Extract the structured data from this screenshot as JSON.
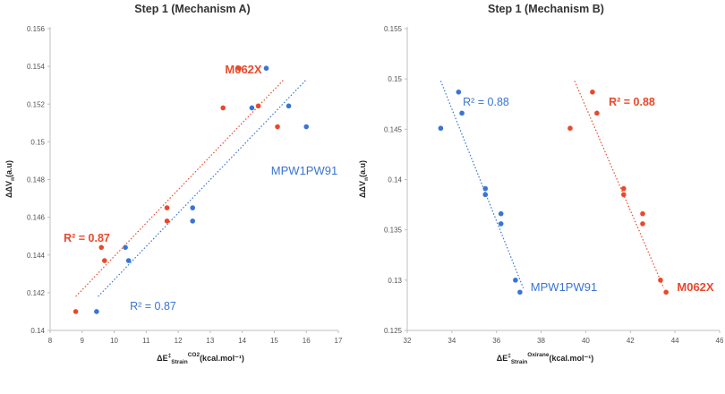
{
  "colors": {
    "red": "#e8492c",
    "blue": "#3a74d4",
    "axis": "#bfbfbf"
  },
  "chart_data": [
    {
      "type": "scatter",
      "title": "Step 1 (Mechanism A)",
      "xlabel": {
        "main": "ΔE",
        "sup": "‡",
        "sub": "Strain",
        "sup2": "CO2",
        "unit": "(kcal.mol⁻¹)"
      },
      "ylabel": {
        "main": "ΔΔV",
        "sub": "n",
        "unit": "(a.u)"
      },
      "xlim": [
        8,
        17
      ],
      "ylim": [
        0.14,
        0.156
      ],
      "xticks": [
        8,
        9,
        10,
        11,
        12,
        13,
        14,
        15,
        16,
        17
      ],
      "xtick_labels": [
        "8",
        "9",
        "10",
        "11",
        "12",
        "13",
        "14",
        "15",
        "16",
        "17"
      ],
      "yticks": [
        0.14,
        0.142,
        0.144,
        0.146,
        0.148,
        0.15,
        0.152,
        0.154,
        0.156
      ],
      "ytick_labels": [
        "0.14",
        "0.142",
        "0.144",
        "0.146",
        "0.148",
        "0.15",
        "0.152",
        "0.154",
        "0.156"
      ],
      "series": [
        {
          "name": "M062X",
          "color": "#e8492c",
          "x": [
            8.8,
            9.6,
            9.7,
            11.65,
            11.65,
            13.4,
            13.9,
            14.5,
            15.1
          ],
          "y": [
            0.141,
            0.1444,
            0.1437,
            0.1465,
            0.1458,
            0.1518,
            0.1539,
            0.1519,
            0.1508
          ],
          "trend": {
            "x": [
              8.8,
              15.3
            ],
            "y": [
              0.1418,
              0.1533
            ]
          },
          "label": "M062X",
          "r2": "R² = 0.87"
        },
        {
          "name": "MPW1PW91",
          "color": "#3a74d4",
          "x": [
            9.45,
            10.35,
            10.45,
            12.45,
            12.45,
            14.3,
            14.75,
            15.45,
            16.0
          ],
          "y": [
            0.141,
            0.1444,
            0.1437,
            0.1465,
            0.1458,
            0.1518,
            0.1539,
            0.1519,
            0.1508
          ],
          "trend": {
            "x": [
              9.5,
              16.0
            ],
            "y": [
              0.1418,
              0.1533
            ]
          },
          "label": "MPW1PW91",
          "r2": "R² = 0.87"
        }
      ]
    },
    {
      "type": "scatter",
      "title": "Step 1 (Mechanism B)",
      "xlabel": {
        "main": "ΔE",
        "sup": "‡",
        "sub": "Strain",
        "sup2": "Oxirane",
        "unit": "(kcal.mol⁻¹)"
      },
      "ylabel": {
        "main": "ΔΔV",
        "sub": "n",
        "unit": "(a.u)"
      },
      "xlim": [
        32,
        46
      ],
      "ylim": [
        0.125,
        0.155
      ],
      "xticks": [
        32,
        34,
        36,
        38,
        40,
        42,
        44,
        46
      ],
      "xtick_labels": [
        "32",
        "34",
        "36",
        "38",
        "40",
        "42",
        "44",
        "46"
      ],
      "yticks": [
        0.125,
        0.13,
        0.135,
        0.14,
        0.145,
        0.15,
        0.155
      ],
      "ytick_labels": [
        "0.125",
        "0.13",
        "0.135",
        "0.14",
        "0.145",
        "0.15",
        "0.155"
      ],
      "series": [
        {
          "name": "MPW1PW91",
          "color": "#3a74d4",
          "x": [
            33.5,
            34.3,
            34.45,
            35.5,
            35.5,
            36.2,
            36.2,
            36.85,
            37.05
          ],
          "y": [
            0.1451,
            0.1487,
            0.1466,
            0.1391,
            0.1385,
            0.1366,
            0.1356,
            0.13,
            0.1288
          ],
          "trend": {
            "x": [
              33.5,
              37.2
            ],
            "y": [
              0.1498,
              0.1292
            ]
          },
          "label": "MPW1PW91",
          "r2": "R² = 0.88"
        },
        {
          "name": "M062X",
          "color": "#e8492c",
          "x": [
            39.3,
            40.3,
            40.5,
            41.7,
            41.7,
            42.55,
            42.55,
            43.35,
            43.6
          ],
          "y": [
            0.1451,
            0.1487,
            0.1466,
            0.1391,
            0.1385,
            0.1366,
            0.1356,
            0.13,
            0.1288
          ],
          "trend": {
            "x": [
              39.5,
              43.5
            ],
            "y": [
              0.1498,
              0.1292
            ]
          },
          "label": "M062X",
          "r2": "R² = 0.88"
        }
      ]
    }
  ]
}
